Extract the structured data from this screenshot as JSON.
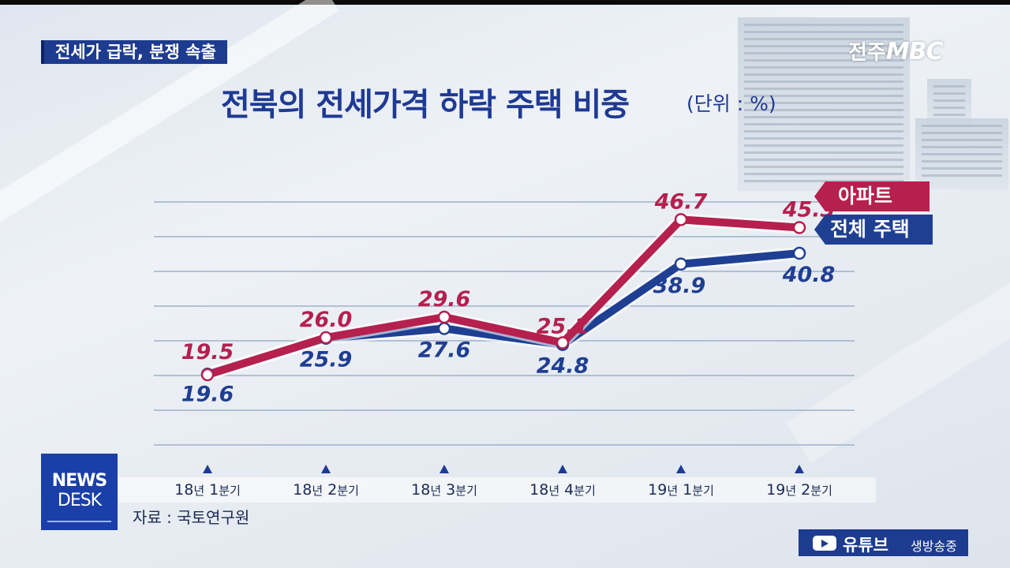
{
  "topic_caption": "전세가 급락, 분쟁 속출",
  "logo": {
    "prefix": "전주",
    "brand": "MBC"
  },
  "source": "자료 : 국토연구원",
  "news_badge": {
    "line1": "NEWS",
    "line2": "DESK"
  },
  "youtube": {
    "label": "유튜브",
    "sub": "생방송중"
  },
  "colors": {
    "apartment": "#b5204e",
    "all_housing": "#1f3f92",
    "title": "#1e3a93"
  },
  "chart_data": {
    "type": "line",
    "title": "전북의 전세가격 하락 주택 비중",
    "unit_label": "(단위 : %)",
    "categories": [
      {
        "year": "18",
        "mark": "년",
        "q": "1",
        "suffix": "분기"
      },
      {
        "year": "18",
        "mark": "년",
        "q": "2",
        "suffix": "분기"
      },
      {
        "year": "18",
        "mark": "년",
        "q": "3",
        "suffix": "분기"
      },
      {
        "year": "18",
        "mark": "년",
        "q": "4",
        "suffix": "분기"
      },
      {
        "year": "19",
        "mark": "년",
        "q": "1",
        "suffix": "분기"
      },
      {
        "year": "19",
        "mark": "년",
        "q": "2",
        "suffix": "분기"
      }
    ],
    "series": [
      {
        "name": "아파트",
        "values": [
          19.5,
          26.0,
          29.6,
          25.1,
          46.7,
          45.3
        ],
        "labels": [
          "19.5",
          "26.0",
          "29.6",
          "25.1",
          "46.7",
          "45.3"
        ]
      },
      {
        "name": "전체 주택",
        "values": [
          19.6,
          25.9,
          27.6,
          24.8,
          38.9,
          40.8
        ],
        "labels": [
          "19.6",
          "25.9",
          "27.6",
          "24.8",
          "38.9",
          "40.8"
        ]
      }
    ],
    "grid": true,
    "legend_position": "right"
  }
}
